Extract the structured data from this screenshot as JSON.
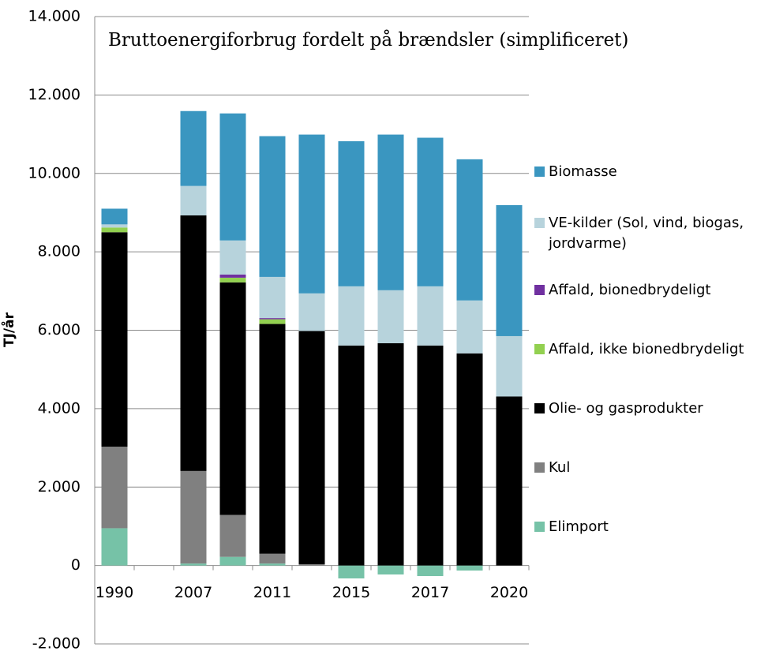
{
  "chart_data": {
    "type": "bar",
    "stacked": true,
    "title": "Bruttoenergiforbrug fordelt på brændsler (simplificeret)",
    "y_label": "TJ/år",
    "categories": [
      "1990",
      null,
      "2007",
      null,
      "2011",
      null,
      "2015",
      null,
      "2017",
      null,
      "2020"
    ],
    "series": [
      {
        "name": "Elimport",
        "color": "#76c2a7",
        "values": [
          950,
          null,
          50,
          220,
          50,
          0,
          -330,
          -230,
          -270,
          -130,
          0
        ]
      },
      {
        "name": "Kul",
        "color": "#808080",
        "values": [
          2080,
          null,
          2360,
          1070,
          250,
          30,
          0,
          0,
          0,
          0,
          0
        ]
      },
      {
        "name": "Olie- og gasprodukter",
        "color": "#000000",
        "values": [
          5470,
          null,
          6520,
          5930,
          5860,
          5950,
          5610,
          5670,
          5610,
          5410,
          4310
        ]
      },
      {
        "name": "Affald, ikke bionedbrydeligt",
        "color": "#92d050",
        "values": [
          120,
          null,
          0,
          120,
          120,
          0,
          0,
          0,
          0,
          0,
          0
        ]
      },
      {
        "name": "Affald, bionedbrydeligt",
        "color": "#7030a0",
        "values": [
          0,
          null,
          0,
          80,
          30,
          0,
          0,
          0,
          0,
          0,
          0
        ]
      },
      {
        "name": "VE-kilder (Sol, vind, biogas, jordvarme)",
        "color": "#b7d3dc",
        "values": [
          80,
          null,
          750,
          870,
          1050,
          960,
          1510,
          1350,
          1510,
          1350,
          1540
        ]
      },
      {
        "name": "Biomasse",
        "color": "#3a96c0",
        "values": [
          400,
          null,
          1910,
          3240,
          3590,
          4050,
          3700,
          3970,
          3790,
          3600,
          3340
        ]
      }
    ],
    "ylim": [
      -2000,
      14000
    ],
    "yticks": [
      {
        "value": -2000,
        "label": "-2.000"
      },
      0,
      {
        "value": 2000,
        "label": "2.000"
      },
      {
        "value": 4000,
        "label": "4.000"
      },
      {
        "value": 6000,
        "label": "6.000"
      },
      {
        "value": 8000,
        "label": "8.000"
      },
      {
        "value": 10000,
        "label": "10.000"
      },
      {
        "value": 12000,
        "label": "12.000"
      },
      {
        "value": 14000,
        "label": "14.000"
      }
    ],
    "grid": true,
    "legend": "right"
  }
}
